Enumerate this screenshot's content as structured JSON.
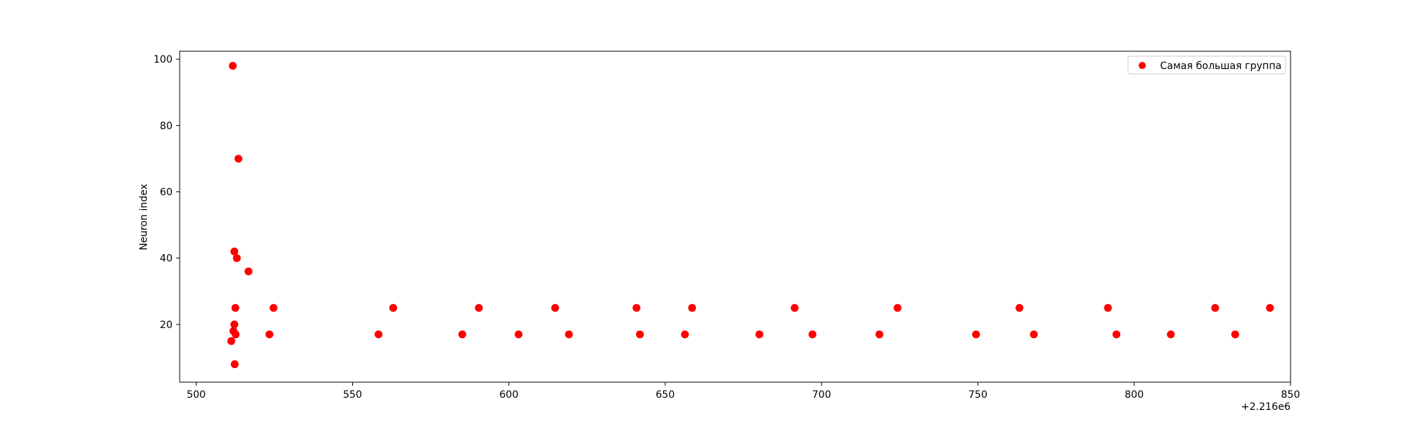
{
  "chart_data": {
    "type": "scatter",
    "title": "",
    "xlabel": "",
    "ylabel": "Neuron index",
    "x_offset_label": "+2.216e6",
    "xlim": [
      494.7,
      850.0
    ],
    "ylim": [
      2.6,
      102.4
    ],
    "x_ticks": [
      500,
      550,
      600,
      650,
      700,
      750,
      800,
      850
    ],
    "y_ticks": [
      20,
      40,
      60,
      80,
      100
    ],
    "grid": false,
    "legend_position": "top-right",
    "series": [
      {
        "name": "Самая большая группа",
        "color": "#ff0000",
        "points": [
          {
            "x": 511.7,
            "y": 98
          },
          {
            "x": 513.5,
            "y": 70
          },
          {
            "x": 512.2,
            "y": 42
          },
          {
            "x": 513.0,
            "y": 40
          },
          {
            "x": 516.7,
            "y": 36
          },
          {
            "x": 512.5,
            "y": 25
          },
          {
            "x": 512.2,
            "y": 20
          },
          {
            "x": 511.9,
            "y": 18
          },
          {
            "x": 512.6,
            "y": 17
          },
          {
            "x": 511.2,
            "y": 15
          },
          {
            "x": 512.3,
            "y": 8
          },
          {
            "x": 523.4,
            "y": 17
          },
          {
            "x": 524.7,
            "y": 25
          },
          {
            "x": 558.3,
            "y": 17
          },
          {
            "x": 563.0,
            "y": 25
          },
          {
            "x": 585.1,
            "y": 17
          },
          {
            "x": 590.4,
            "y": 25
          },
          {
            "x": 603.1,
            "y": 17
          },
          {
            "x": 614.8,
            "y": 25
          },
          {
            "x": 619.2,
            "y": 17
          },
          {
            "x": 640.8,
            "y": 25
          },
          {
            "x": 641.9,
            "y": 17
          },
          {
            "x": 656.3,
            "y": 17
          },
          {
            "x": 658.6,
            "y": 25
          },
          {
            "x": 680.1,
            "y": 17
          },
          {
            "x": 691.4,
            "y": 25
          },
          {
            "x": 697.1,
            "y": 17
          },
          {
            "x": 718.5,
            "y": 17
          },
          {
            "x": 724.3,
            "y": 25
          },
          {
            "x": 749.4,
            "y": 17
          },
          {
            "x": 763.3,
            "y": 25
          },
          {
            "x": 767.9,
            "y": 17
          },
          {
            "x": 791.6,
            "y": 25
          },
          {
            "x": 794.3,
            "y": 17
          },
          {
            "x": 811.7,
            "y": 17
          },
          {
            "x": 825.9,
            "y": 25
          },
          {
            "x": 832.3,
            "y": 17
          },
          {
            "x": 843.4,
            "y": 25
          }
        ]
      }
    ]
  }
}
